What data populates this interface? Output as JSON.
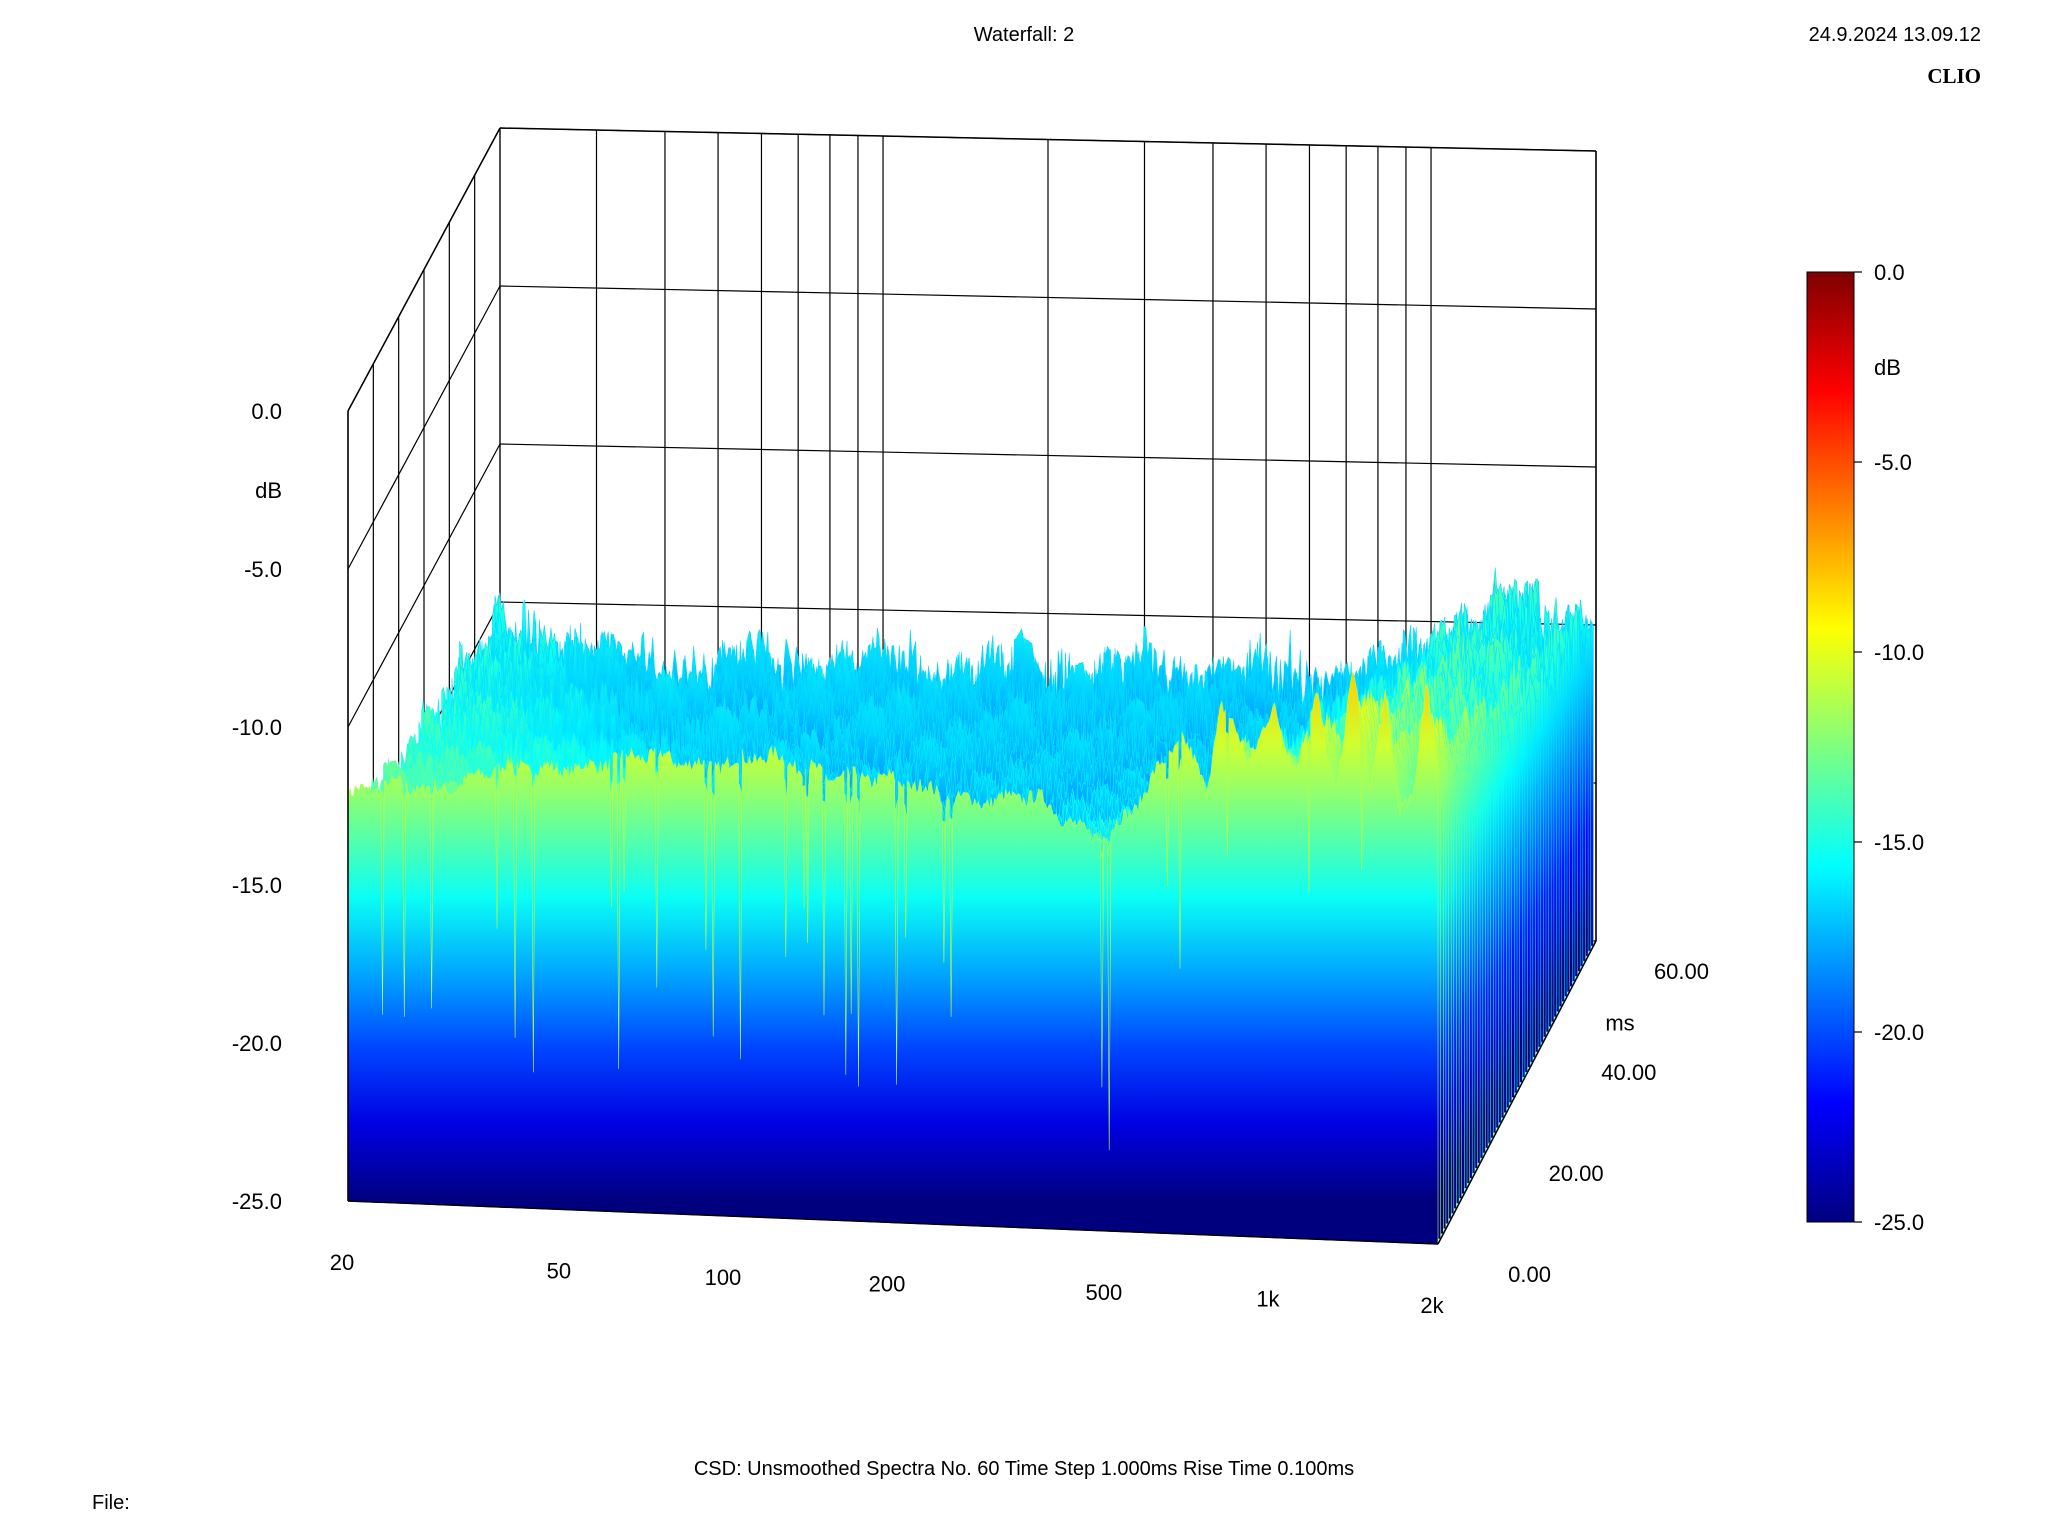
{
  "header": {
    "title": "Waterfall: 2",
    "timestamp": "24.9.2024 13.09.12",
    "brand": "CLIO"
  },
  "footer": {
    "settings": "CSD:   Unsmoothed   Spectra No. 60   Time Step 1.000ms   Rise Time 0.100ms",
    "file_label": "File:"
  },
  "colors": {
    "colormap": [
      "#00007f",
      "#0000ff",
      "#007fff",
      "#00ffff",
      "#7fff7f",
      "#ffff00",
      "#ff7f00",
      "#ff0000",
      "#7f0000"
    ]
  },
  "chart_data": {
    "type": "waterfall",
    "title": "Waterfall: 2",
    "x_axis": {
      "label": "",
      "scale": "log",
      "range": [
        20,
        2000
      ],
      "ticks": [
        "20",
        "50",
        "100",
        "200",
        "500",
        "1k",
        "2k"
      ]
    },
    "z_axis": {
      "label": "ms",
      "range": [
        0,
        60
      ],
      "ticks": [
        "0.00",
        "20.00",
        "40.00",
        "60.00"
      ]
    },
    "y_axis": {
      "label": "dB",
      "range": [
        -25,
        0
      ],
      "ticks": [
        "0.0",
        "-5.0",
        "-10.0",
        "-15.0",
        "-20.0",
        "-25.0"
      ]
    },
    "colorbar": {
      "label": "dB",
      "range": [
        -25,
        0
      ],
      "ticks": [
        "0.0",
        "-5.0",
        "-10.0",
        "-15.0",
        "-20.0",
        "-25.0"
      ]
    },
    "front_slice_0ms": {
      "frequency_hz": [
        20,
        22,
        25,
        30,
        35,
        40,
        45,
        50,
        60,
        70,
        80,
        90,
        100,
        120,
        140,
        160,
        180,
        200,
        240,
        280,
        320,
        360,
        400,
        450,
        500,
        560,
        620,
        680,
        750,
        800,
        900,
        1000,
        1100,
        1200,
        1300,
        1400,
        1500,
        1600,
        1700,
        1800,
        1900,
        2000
      ],
      "level_db": [
        -12.2,
        -12.1,
        -11.9,
        -11.7,
        -11.4,
        -11.2,
        -11.1,
        -10.9,
        -10.8,
        -10.7,
        -10.6,
        -10.6,
        -10.6,
        -10.6,
        -10.7,
        -10.8,
        -11,
        -11.2,
        -11.3,
        -11.4,
        -11.6,
        -11.5,
        -11.8,
        -12.3,
        -12.3,
        -11.6,
        -10.4,
        -9.3,
        -10.8,
        -8,
        -9.8,
        -8.5,
        -10.3,
        -7.7,
        -10.8,
        -6.7,
        -10.5,
        -7.9,
        -11.3,
        -11.1,
        -7.5,
        -9.6
      ]
    },
    "decay_to_floor_at_60ms_db": -17
  }
}
